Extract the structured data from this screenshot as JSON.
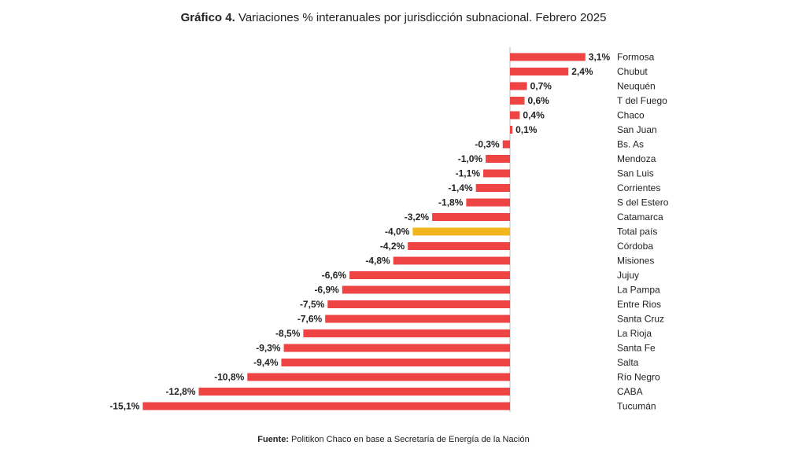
{
  "title": {
    "prefix": "Gráfico 4.",
    "text": "Variaciones % interanuales por jurisdicción subnacional. Febrero 2025"
  },
  "source": {
    "label": "Fuente:",
    "text": "Politikon Chaco en base a Secretaría de Energía de la Nación"
  },
  "colors": {
    "bar": "#ee4444",
    "highlight": "#f2b51c",
    "axis": "#bbbbbb"
  },
  "chart_data": {
    "type": "bar",
    "orientation": "horizontal",
    "highlight_category": "Total país",
    "categories": [
      "Formosa",
      "Chubut",
      "Neuquén",
      "T del Fuego",
      "Chaco",
      "San Juan",
      "Bs. As",
      "Mendoza",
      "San Luis",
      "Corrientes",
      "S del Estero",
      "Catamarca",
      "Total país",
      "Córdoba",
      "Misiones",
      "Jujuy",
      "La Pampa",
      "Entre Rios",
      "Santa Cruz",
      "La Rioja",
      "Santa Fe",
      "Salta",
      "Río Negro",
      "CABA",
      "Tucumán"
    ],
    "values": [
      3.1,
      2.4,
      0.7,
      0.6,
      0.4,
      0.1,
      -0.3,
      -1.0,
      -1.1,
      -1.4,
      -1.8,
      -3.2,
      -4.0,
      -4.2,
      -4.8,
      -6.6,
      -6.9,
      -7.5,
      -7.6,
      -8.5,
      -9.3,
      -9.4,
      -10.8,
      -12.8,
      -15.1
    ],
    "value_labels": [
      "3,1%",
      "2,4%",
      "0,7%",
      "0,6%",
      "0,4%",
      "0,1%",
      "-0,3%",
      "-1,0%",
      "-1,1%",
      "-1,4%",
      "-1,8%",
      "-3,2%",
      "-4,0%",
      "-4,2%",
      "-4,8%",
      "-6,6%",
      "-6,9%",
      "-7,5%",
      "-7,6%",
      "-8,5%",
      "-9,3%",
      "-9,4%",
      "-10,8%",
      "-12,8%",
      "-15,1%"
    ],
    "xlim": [
      -15.1,
      3.1
    ],
    "grid": false,
    "legend": "none"
  }
}
